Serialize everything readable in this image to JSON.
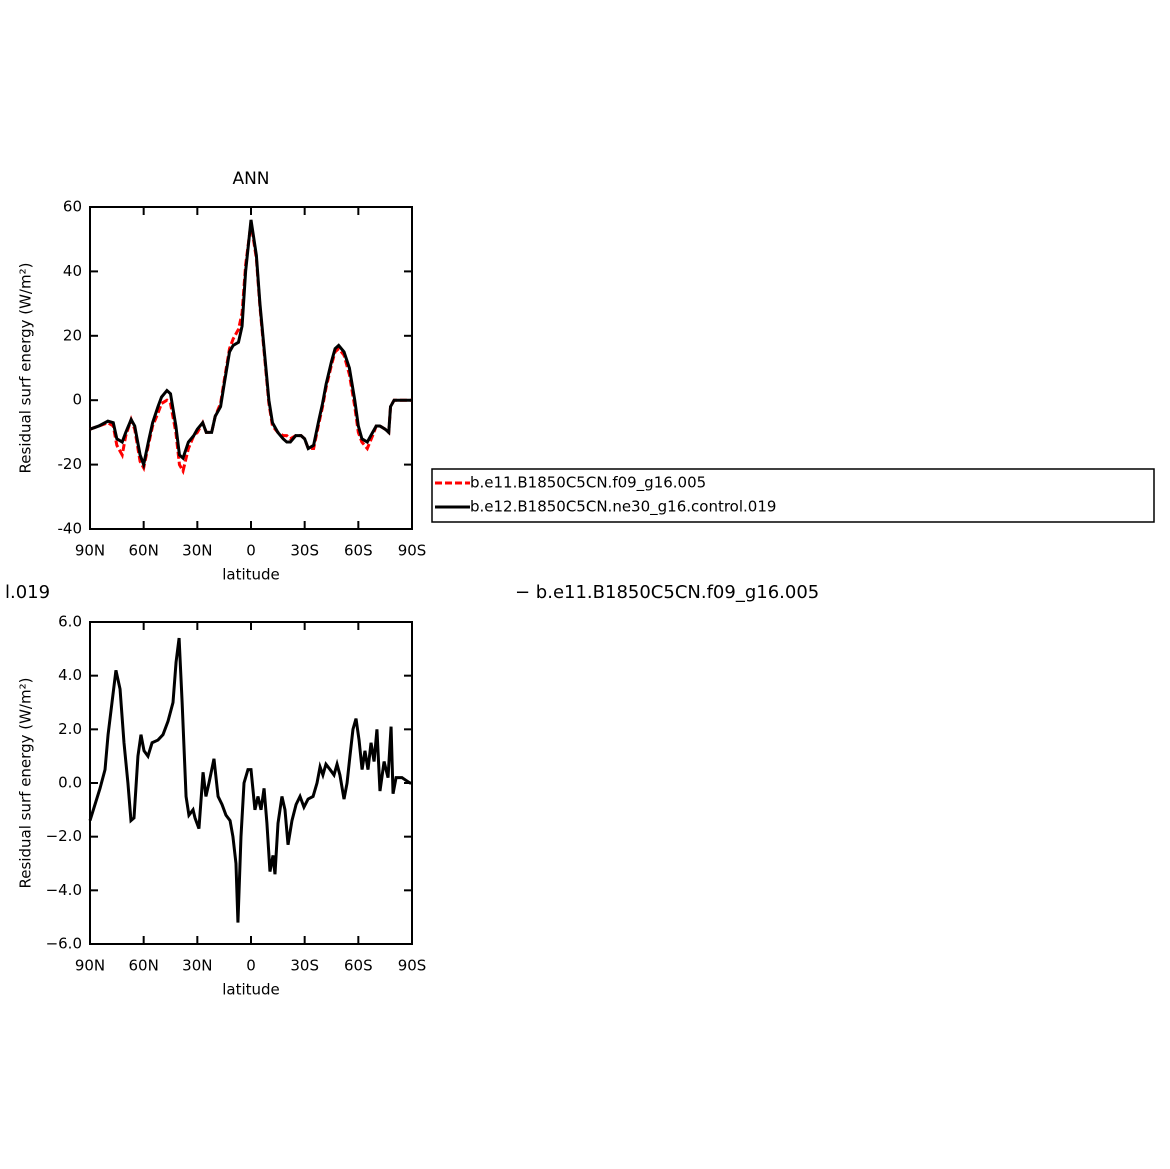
{
  "chart_data": [
    {
      "type": "line",
      "title": "ANN",
      "xlabel": "latitude",
      "ylabel": "Residual surf energy (W/m²)",
      "xlim": [
        90,
        -90
      ],
      "ylim": [
        -40,
        60
      ],
      "xticks": [
        {
          "value": 90,
          "label": "90N"
        },
        {
          "value": 60,
          "label": "60N"
        },
        {
          "value": 30,
          "label": "30N"
        },
        0,
        {
          "value": -30,
          "label": "30S"
        },
        {
          "value": -60,
          "label": "60S"
        },
        {
          "value": -90,
          "label": "90S"
        }
      ],
      "yticks": [
        -40,
        -20,
        0,
        20,
        40,
        60
      ],
      "legend": "right",
      "x": [
        90,
        85,
        80,
        77,
        75,
        72,
        70,
        67,
        65,
        62,
        60,
        57,
        55,
        52,
        50,
        47,
        45,
        42,
        40,
        38,
        35,
        32,
        30,
        27,
        25,
        22,
        20,
        17,
        15,
        12,
        10,
        7,
        5,
        3,
        0,
        -3,
        -5,
        -8,
        -10,
        -12,
        -15,
        -18,
        -20,
        -22,
        -25,
        -28,
        -30,
        -32,
        -35,
        -38,
        -40,
        -42,
        -45,
        -47,
        -49,
        -52,
        -55,
        -58,
        -60,
        -62,
        -65,
        -68,
        -70,
        -72,
        -75,
        -77,
        -78,
        -80,
        -85,
        -90
      ],
      "series": [
        {
          "name": "b.e11.B1850C5CN.f09_g16.005",
          "color": "#ff0000",
          "dash": "dashed",
          "values": [
            -9,
            -8,
            -7,
            -8,
            -14,
            -17,
            -11,
            -6,
            -9,
            -19,
            -21,
            -13,
            -8,
            -4,
            -1,
            0,
            -1,
            -10,
            -20,
            -22,
            -15,
            -11,
            -10,
            -7,
            -10,
            -10,
            -5,
            -1,
            6,
            16,
            19,
            22,
            27,
            42,
            55,
            44,
            29,
            11,
            -1,
            -8,
            -10,
            -11,
            -11,
            -12,
            -11,
            -11,
            -12,
            -15,
            -15,
            -7,
            -2,
            4,
            11,
            15,
            16,
            14,
            8,
            -2,
            -10,
            -13,
            -15,
            -11,
            -8,
            -8,
            -9,
            -10,
            -2,
            0,
            0,
            0
          ]
        },
        {
          "name": "b.e12.B1850C5CN.ne30_g16.control.019",
          "color": "#000000",
          "dash": "solid",
          "values": [
            -9,
            -8,
            -6.5,
            -7,
            -12,
            -13,
            -10,
            -6,
            -8,
            -17,
            -20,
            -12,
            -7,
            -2,
            1,
            3,
            2,
            -8,
            -17,
            -18,
            -13,
            -11,
            -9,
            -7,
            -10,
            -10,
            -5,
            -2,
            5,
            15,
            17,
            18,
            23,
            40,
            56,
            45,
            30,
            12,
            0,
            -7,
            -10,
            -12,
            -13,
            -13,
            -11,
            -11,
            -12,
            -15,
            -14,
            -6,
            -1,
            5,
            12,
            16,
            17,
            15,
            10,
            0,
            -8,
            -12,
            -13,
            -10,
            -8,
            -8,
            -9,
            -10,
            -2,
            0,
            0,
            0
          ]
        }
      ]
    },
    {
      "type": "line",
      "annotations": [
        "l.019",
        "− b.e11.B1850C5CN.f09_g16.005"
      ],
      "xlabel": "latitude",
      "ylabel": "Residual surf energy (W/m²)",
      "xlim": [
        90,
        -90
      ],
      "ylim": [
        -6,
        6
      ],
      "xticks": [
        {
          "value": 90,
          "label": "90N"
        },
        {
          "value": 60,
          "label": "60N"
        },
        {
          "value": 30,
          "label": "30N"
        },
        0,
        {
          "value": -30,
          "label": "30S"
        },
        {
          "value": -60,
          "label": "60S"
        },
        {
          "value": -90,
          "label": "90S"
        }
      ],
      "yticks": [
        {
          "value": -6,
          "label": "−6.0"
        },
        {
          "value": -4,
          "label": "−4.0"
        },
        {
          "value": -2,
          "label": "−2.0"
        },
        {
          "value": 0,
          "label": "0.0"
        },
        {
          "value": 2,
          "label": "2.0"
        },
        {
          "value": 4,
          "label": "4.0"
        },
        {
          "value": 6,
          "label": "6.0"
        }
      ],
      "x": [
        90,
        84.4,
        81.6,
        79.9,
        77.7,
        75.5,
        73.2,
        71,
        68.8,
        67.1,
        65.4,
        63.2,
        61.5,
        59.8,
        57.6,
        55.3,
        52,
        49.2,
        46.4,
        43.6,
        41.9,
        40.2,
        38.5,
        36.3,
        34.7,
        32.4,
        31.3,
        29.1,
        26.8,
        25.2,
        23.5,
        20.7,
        18.4,
        16.2,
        14,
        11.7,
        10.1,
        8.4,
        7.3,
        5.6,
        3.9,
        1.7,
        0,
        -2.2,
        -3.9,
        -5.6,
        -7.3,
        -8.9,
        -10.6,
        -12.3,
        -13.4,
        -15.1,
        -17.3,
        -19,
        -20.7,
        -22.9,
        -25.2,
        -27.4,
        -29.6,
        -31.9,
        -34.7,
        -36.9,
        -38.6,
        -40.2,
        -41.9,
        -44.2,
        -46.4,
        -48.1,
        -49.7,
        -52,
        -53.7,
        -55.3,
        -57,
        -58.7,
        -60.4,
        -62.1,
        -63.7,
        -65.4,
        -67.1,
        -68.8,
        -70.4,
        -72.1,
        -74.4,
        -76.6,
        -78.3,
        -79.4,
        -81.1,
        -84.4,
        -86.6,
        -88.9,
        -90
      ],
      "series": [
        {
          "color": "#000000",
          "dash": "solid",
          "values": [
            -1.4,
            -0.2,
            0.5,
            1.8,
            3.0,
            4.2,
            3.5,
            1.5,
            0,
            -1.4,
            -1.3,
            1.0,
            1.8,
            1.2,
            1.0,
            1.5,
            1.6,
            1.8,
            2.3,
            3.0,
            4.5,
            5.4,
            3.0,
            -0.5,
            -1.2,
            -1.0,
            -1.3,
            -1.7,
            0.4,
            -0.5,
            0.0,
            0.9,
            -0.5,
            -0.8,
            -1.2,
            -1.4,
            -2.0,
            -3.0,
            -5.2,
            -2.0,
            0.0,
            0.5,
            0.5,
            -1.0,
            -0.5,
            -1.0,
            -0.2,
            -1.5,
            -3.3,
            -2.7,
            -3.4,
            -1.5,
            -0.5,
            -1.0,
            -2.3,
            -1.4,
            -0.8,
            -0.5,
            -0.9,
            -0.6,
            -0.5,
            0.0,
            0.6,
            0.3,
            0.7,
            0.5,
            0.3,
            0.7,
            0.3,
            -0.6,
            0.0,
            1.0,
            2.0,
            2.4,
            1.6,
            0.5,
            1.2,
            0.5,
            1.5,
            0.8,
            2.0,
            -0.3,
            0.8,
            0.2,
            2.1,
            -0.4,
            0.2,
            0.2,
            0.1,
            0.0,
            0.0
          ]
        }
      ]
    }
  ]
}
